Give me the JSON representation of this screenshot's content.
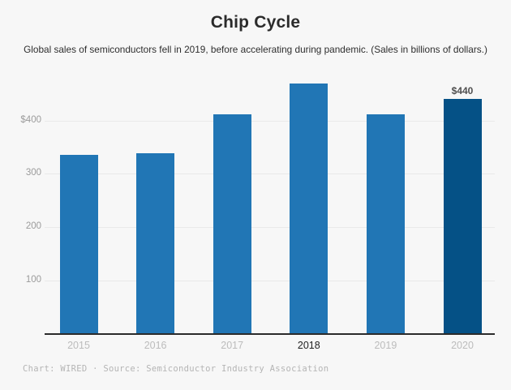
{
  "chart_data": {
    "type": "bar",
    "title": "Chip Cycle",
    "subtitle": "Global sales of semiconductors fell in 2019, before accelerating during pandemic. (Sales in billions of dollars.)",
    "categories": [
      "2015",
      "2016",
      "2017",
      "2018",
      "2019",
      "2020"
    ],
    "values": [
      335,
      339,
      412,
      469,
      412,
      440
    ],
    "highlighted_category": "2020",
    "emphasized_tick": "2018",
    "bar_label": {
      "category": "2020",
      "text": "$440"
    },
    "xlabel": "",
    "ylabel": "",
    "yticks": [
      {
        "value": 400,
        "label": "$400"
      },
      {
        "value": 300,
        "label": "300"
      },
      {
        "value": 200,
        "label": "200"
      },
      {
        "value": 100,
        "label": "100"
      }
    ],
    "ylim": [
      0,
      490
    ],
    "grid": true,
    "legend": false,
    "colors": {
      "bar": "#2176b5",
      "highlight_bar": "#055186",
      "background": "#f7f7f7",
      "gridline": "#e9e9e9",
      "axis": "#2b2b2b"
    }
  },
  "footer": {
    "attribution": "Chart: WIRED · Source: Semiconductor Industry Association"
  }
}
